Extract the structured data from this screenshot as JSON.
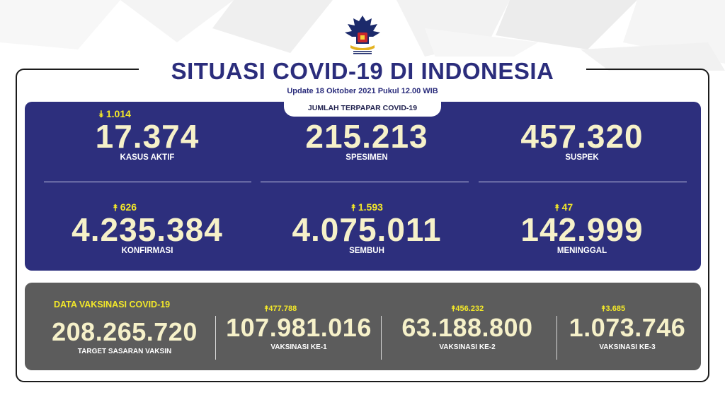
{
  "header": {
    "title": "SITUASI COVID-19 DI INDONESIA",
    "subtitle": "Update 18 Oktober 2021 Pukul 12.00 WIB",
    "logo_icon": "garuda-emblem-icon"
  },
  "exposure": {
    "tab_label": "JUMLAH TERPAPAR COVID-19",
    "stats": [
      {
        "delta": "1.014",
        "direction": "down",
        "value": "17.374",
        "label": "KASUS AKTIF"
      },
      {
        "delta": "",
        "direction": "none",
        "value": "215.213",
        "label": "SPESIMEN"
      },
      {
        "delta": "",
        "direction": "none",
        "value": "457.320",
        "label": "SUSPEK"
      },
      {
        "delta": "626",
        "direction": "up",
        "value": "4.235.384",
        "label": "KONFIRMASI"
      },
      {
        "delta": "1.593",
        "direction": "up",
        "value": "4.075.011",
        "label": "SEMBUH"
      },
      {
        "delta": "47",
        "direction": "up",
        "value": "142.999",
        "label": "MENINGGAL"
      }
    ]
  },
  "vaccination": {
    "title": "DATA VAKSINASI COVID-19",
    "items": [
      {
        "delta": "",
        "value": "208.265.720",
        "label": "TARGET SASARAN VAKSIN"
      },
      {
        "delta": "477.788",
        "value": "107.981.016",
        "label": "VAKSINASI KE-1"
      },
      {
        "delta": "456.232",
        "value": "63.188.800",
        "label": "VAKSINASI KE-2"
      },
      {
        "delta": "3.685",
        "value": "1.073.746",
        "label": "VAKSINASI KE-3"
      }
    ]
  },
  "colors": {
    "navy": "#2d2f7d",
    "title_blue": "#2b2d7c",
    "yellow": "#f3e829",
    "number_cream": "#f6f1c9",
    "panel_gray": "#5c5c5c"
  }
}
